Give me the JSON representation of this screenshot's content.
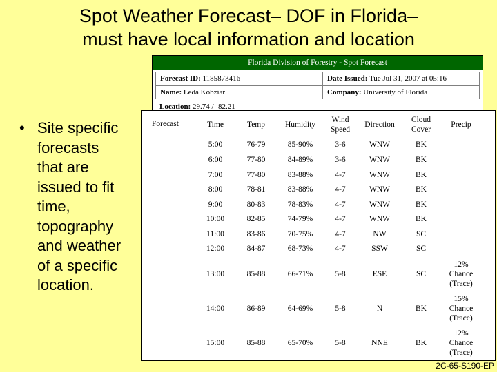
{
  "title": {
    "line1": "Spot Weather Forecast– DOF in Florida–",
    "line2": "must have local information and location"
  },
  "bullet": {
    "symbol": "•",
    "lines": [
      "Site specific",
      "forecasts",
      "that are",
      "issued to fit",
      "time,",
      "topography",
      "and weather",
      "of a specific",
      "location."
    ]
  },
  "forecast_form": {
    "header": "Florida Division of Forestry - Spot Forecast",
    "forecast_id_label": "Forecast ID:",
    "forecast_id": "1185873416",
    "date_label": "Date Issued:",
    "date": "Tue Jul 31, 2007 at 05:16",
    "name_label": "Name:",
    "name": "Leda Kobziar",
    "company_label": "Company:",
    "company": "University of Florida",
    "location_label": "Location:",
    "location": "29.74 / -82.21"
  },
  "table": {
    "forecast_label": "Forecast",
    "headers": [
      [
        "Time"
      ],
      [
        "Temp"
      ],
      [
        "Humidity"
      ],
      [
        "Wind",
        "Speed"
      ],
      [
        "Direction"
      ],
      [
        "Cloud",
        "Cover"
      ],
      [
        "Precip"
      ]
    ],
    "rows": [
      {
        "time": "5:00",
        "temp": "76-79",
        "humidity": "85-90%",
        "wind": "3-6",
        "direction": "WNW",
        "cloud": "BK",
        "precip": []
      },
      {
        "time": "6:00",
        "temp": "77-80",
        "humidity": "84-89%",
        "wind": "3-6",
        "direction": "WNW",
        "cloud": "BK",
        "precip": []
      },
      {
        "time": "7:00",
        "temp": "77-80",
        "humidity": "83-88%",
        "wind": "4-7",
        "direction": "WNW",
        "cloud": "BK",
        "precip": []
      },
      {
        "time": "8:00",
        "temp": "78-81",
        "humidity": "83-88%",
        "wind": "4-7",
        "direction": "WNW",
        "cloud": "BK",
        "precip": []
      },
      {
        "time": "9:00",
        "temp": "80-83",
        "humidity": "78-83%",
        "wind": "4-7",
        "direction": "WNW",
        "cloud": "BK",
        "precip": []
      },
      {
        "time": "10:00",
        "temp": "82-85",
        "humidity": "74-79%",
        "wind": "4-7",
        "direction": "WNW",
        "cloud": "BK",
        "precip": []
      },
      {
        "time": "11:00",
        "temp": "83-86",
        "humidity": "70-75%",
        "wind": "4-7",
        "direction": "NW",
        "cloud": "SC",
        "precip": []
      },
      {
        "time": "12:00",
        "temp": "84-87",
        "humidity": "68-73%",
        "wind": "4-7",
        "direction": "SSW",
        "cloud": "SC",
        "precip": []
      },
      {
        "time": "13:00",
        "temp": "85-88",
        "humidity": "66-71%",
        "wind": "5-8",
        "direction": "ESE",
        "cloud": "SC",
        "precip": [
          "12%",
          "Chance",
          "(Trace)"
        ]
      },
      {
        "time": "14:00",
        "temp": "86-89",
        "humidity": "64-69%",
        "wind": "5-8",
        "direction": "N",
        "cloud": "BK",
        "precip": [
          "15%",
          "Chance",
          "(Trace)"
        ]
      },
      {
        "time": "15:00",
        "temp": "85-88",
        "humidity": "65-70%",
        "wind": "5-8",
        "direction": "NNE",
        "cloud": "BK",
        "precip": [
          "12%",
          "Chance",
          "(Trace)"
        ]
      }
    ]
  },
  "footer": "2C-65-S190-EP"
}
